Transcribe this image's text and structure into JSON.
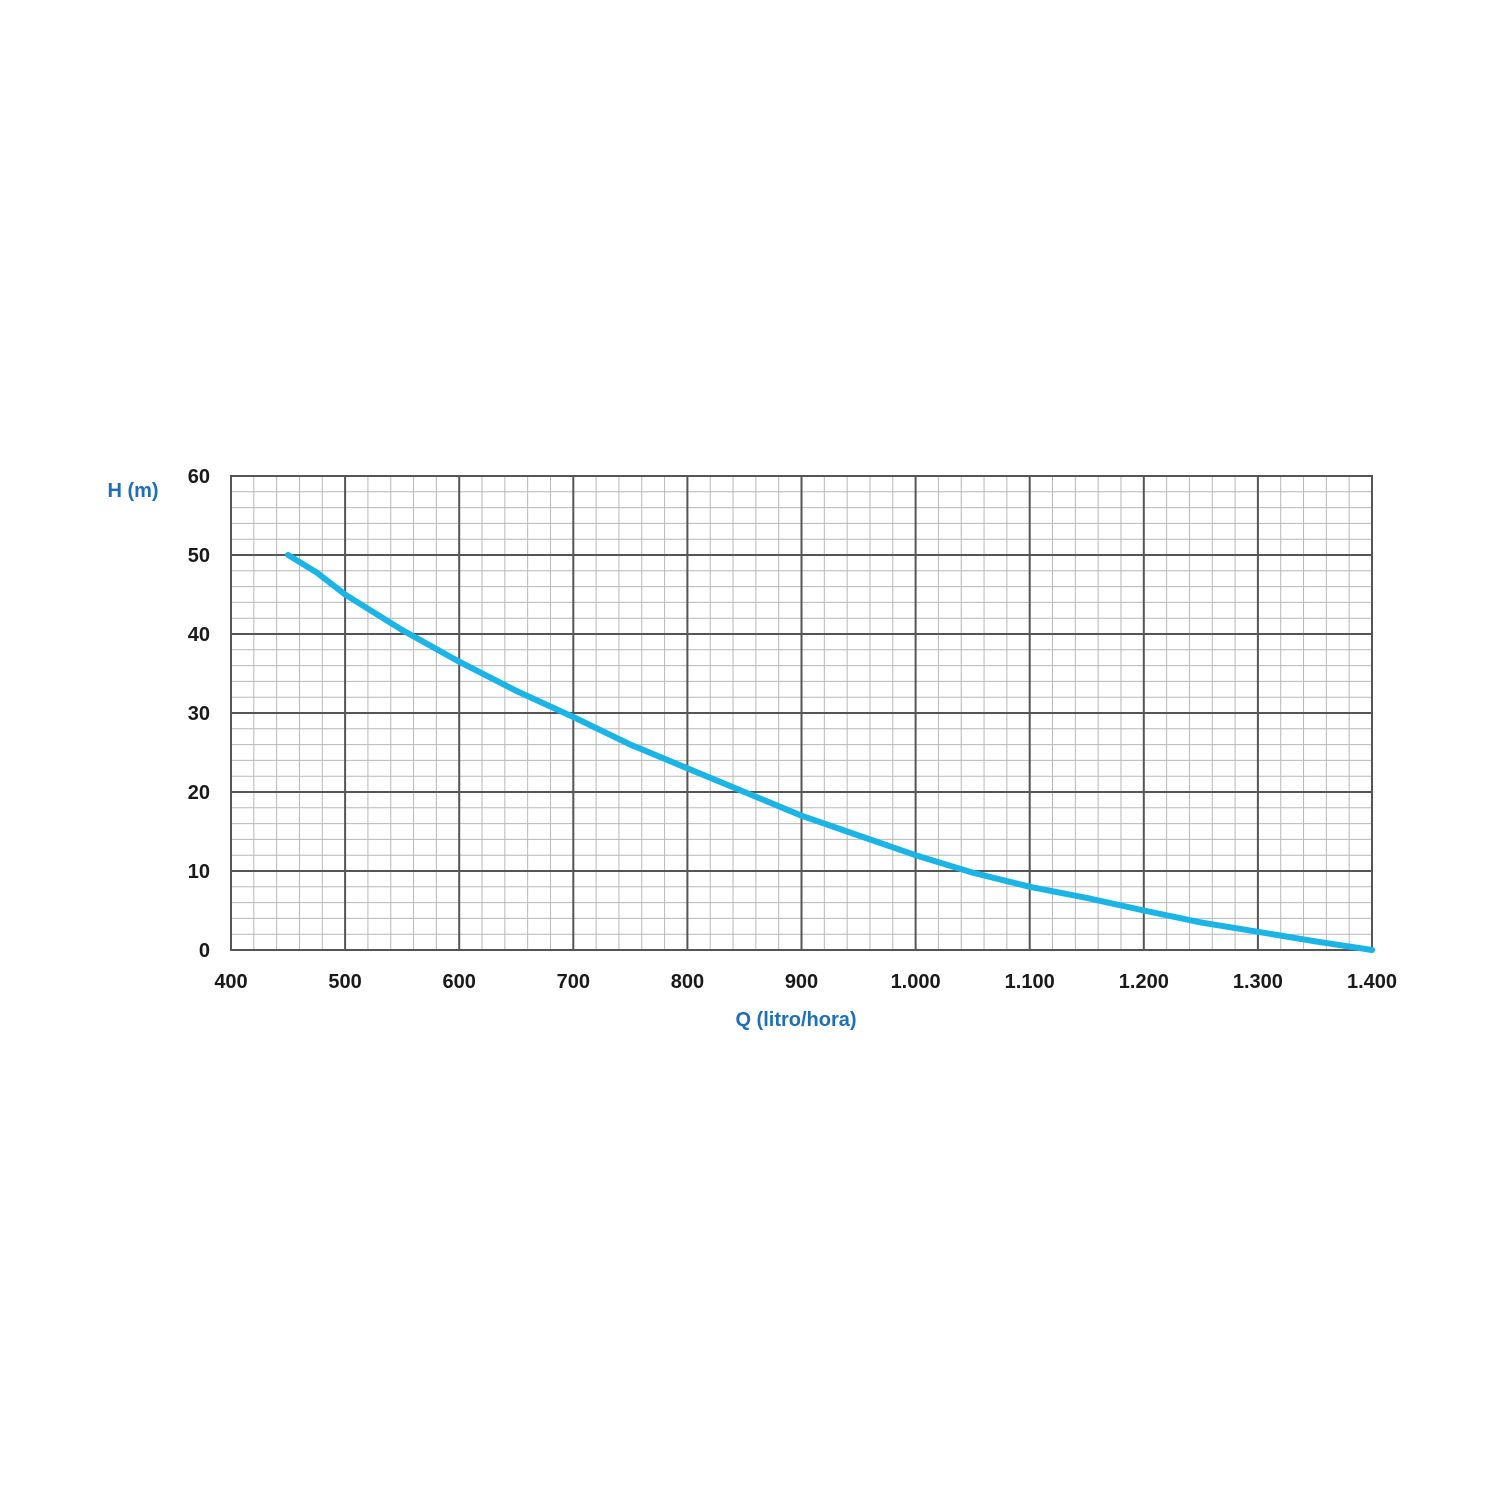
{
  "chart_data": {
    "type": "line",
    "title": "",
    "xlabel": "Q (litro/hora)",
    "ylabel": "H (m)",
    "xlim": [
      400,
      1400
    ],
    "ylim": [
      0,
      60
    ],
    "x_ticks": [
      {
        "value": 400,
        "label": "400"
      },
      {
        "value": 500,
        "label": "500"
      },
      {
        "value": 600,
        "label": "600"
      },
      {
        "value": 700,
        "label": "700"
      },
      {
        "value": 800,
        "label": "800"
      },
      {
        "value": 900,
        "label": "900"
      },
      {
        "value": 1000,
        "label": "1.000"
      },
      {
        "value": 1100,
        "label": "1.100"
      },
      {
        "value": 1200,
        "label": "1.200"
      },
      {
        "value": 1300,
        "label": "1.300"
      },
      {
        "value": 1400,
        "label": "1.400"
      }
    ],
    "y_ticks": [
      {
        "value": 0,
        "label": "0"
      },
      {
        "value": 10,
        "label": "10"
      },
      {
        "value": 20,
        "label": "20"
      },
      {
        "value": 30,
        "label": "30"
      },
      {
        "value": 40,
        "label": "40"
      },
      {
        "value": 50,
        "label": "50"
      },
      {
        "value": 60,
        "label": "60"
      }
    ],
    "grid": true,
    "legend": false,
    "series": [
      {
        "x": [
          450,
          475,
          500,
          550,
          600,
          650,
          700,
          750,
          800,
          850,
          900,
          950,
          1000,
          1050,
          1100,
          1150,
          1200,
          1250,
          1300,
          1350,
          1400
        ],
        "y": [
          50,
          47.8,
          45,
          40.5,
          36.5,
          32.8,
          29.5,
          26,
          23,
          20,
          17,
          14.5,
          12,
          9.8,
          8,
          6.6,
          5,
          3.5,
          2.3,
          1.1,
          0
        ]
      }
    ],
    "colors": {
      "line": "#1ab5e6",
      "axis_title": "#1e6fb8",
      "grid_major": "#555555",
      "grid_minor": "#b8b8b8",
      "tick_label": "#1a1a1a"
    }
  }
}
